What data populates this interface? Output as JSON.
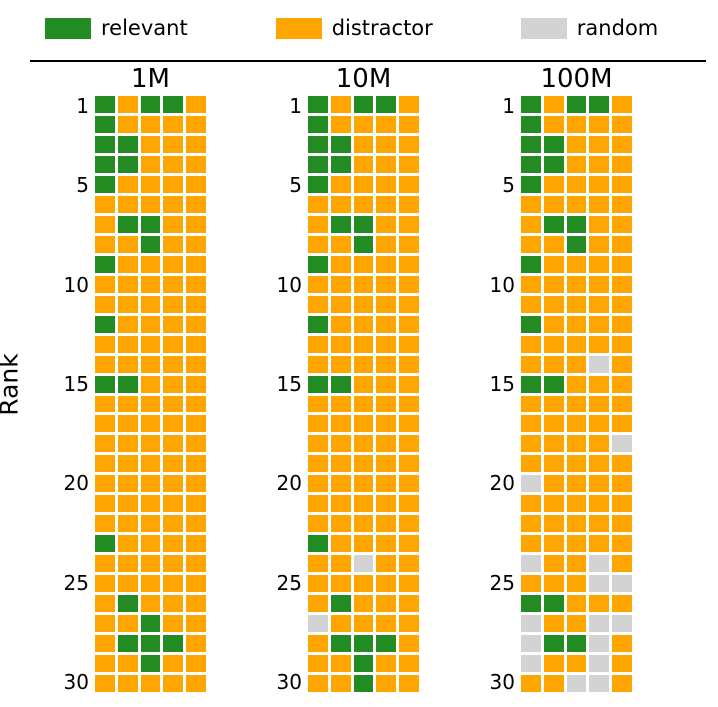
{
  "legend": {
    "items": [
      {
        "label": "relevant",
        "color": "#228B22"
      },
      {
        "label": "distractor",
        "color": "#FFA500"
      },
      {
        "label": "random",
        "color": "#D3D3D3"
      }
    ]
  },
  "yticks": [
    1,
    5,
    10,
    15,
    20,
    25,
    30
  ],
  "chart_data": {
    "type": "heatmap",
    "title": "",
    "ylabel": "Rank",
    "rows": 30,
    "cols": 5,
    "legend_position": "top",
    "color_key": {
      "G": "relevant",
      "O": "distractor",
      "R": "random"
    },
    "colors": {
      "G": "#228B22",
      "O": "#FFA500",
      "R": "#D3D3D3"
    },
    "panels": [
      {
        "title": "1M",
        "grid": [
          "GOGGO",
          "GOOOO",
          "GGOOO",
          "GGOOO",
          "GOOOO",
          "OOOOO",
          "OGGOO",
          "OOGOO",
          "GOOOO",
          "OOOOO",
          "OOOOO",
          "GOOOO",
          "OOOOO",
          "OOOOO",
          "GGOOO",
          "OOOOO",
          "OOOOO",
          "OOOOO",
          "OOOOO",
          "OOOOO",
          "OOOOO",
          "OOOOO",
          "GOOOO",
          "OOOOO",
          "OOOOO",
          "OGOOO",
          "OOGOO",
          "OGGGO",
          "OOGOO",
          "OOOOO"
        ]
      },
      {
        "title": "10M",
        "grid": [
          "GOGGO",
          "GOOOO",
          "GGOOO",
          "GGOOO",
          "GOOOO",
          "OOOOO",
          "OGGOO",
          "OOGOO",
          "GOOOO",
          "OOOOO",
          "OOOOO",
          "GOOOO",
          "OOOOO",
          "OOOOO",
          "GGOOO",
          "OOOOO",
          "OOOOO",
          "OOOOO",
          "OOOOO",
          "OOOOO",
          "OOOOO",
          "OOOOO",
          "GOOOO",
          "OOROO",
          "OOOOO",
          "OGOOO",
          "ROOOO",
          "OGGGO",
          "OOGOO",
          "OOGOO"
        ]
      },
      {
        "title": "100M",
        "grid": [
          "GOGGO",
          "GOOOO",
          "GGOOO",
          "GGOOO",
          "GOOOO",
          "OOOOO",
          "OGGOO",
          "OOGOO",
          "GOOOO",
          "OOOOO",
          "OOOOO",
          "GOOOO",
          "OOOOO",
          "OOORO",
          "GGOOO",
          "OOOOO",
          "OOOOO",
          "OOOOR",
          "OOOOO",
          "ROOOO",
          "OOOOO",
          "OOOOO",
          "OOOOO",
          "ROORO",
          "OOORR",
          "GGOOO",
          "ROORR",
          "RGGRO",
          "ROORO",
          "OORRO"
        ]
      }
    ]
  }
}
